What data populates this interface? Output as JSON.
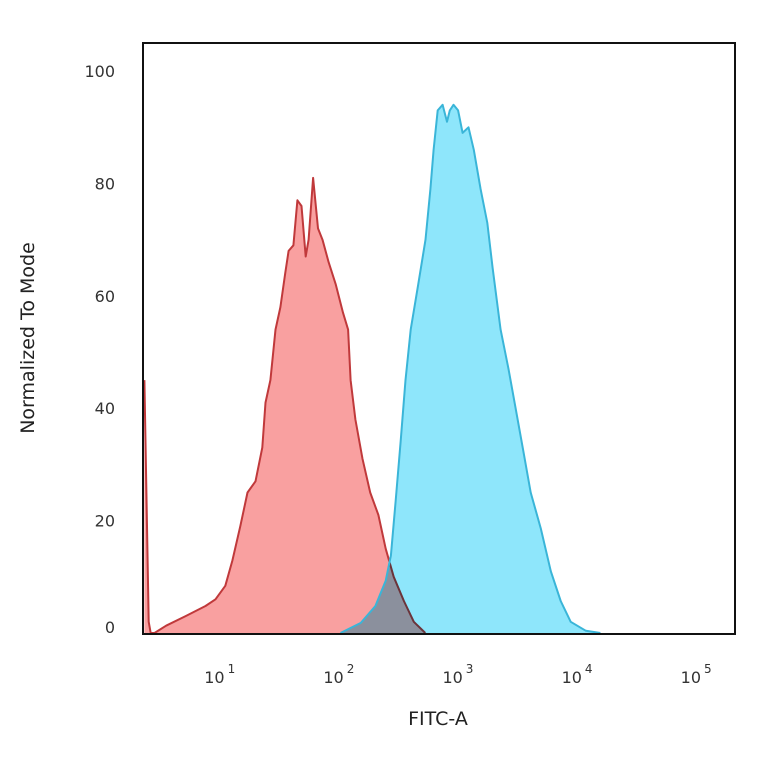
{
  "chart_data": {
    "type": "area",
    "title": "",
    "xlabel": "FITC-A",
    "ylabel": "Normalized To Mode",
    "x_scale": "log",
    "xlim": [
      2.24,
      209000
    ],
    "ylim": [
      0,
      105
    ],
    "grid": false,
    "legend": "none",
    "x_ticks": [
      {
        "base": "10",
        "exp": "1",
        "value": 10
      },
      {
        "base": "10",
        "exp": "2",
        "value": 100
      },
      {
        "base": "10",
        "exp": "3",
        "value": 1000
      },
      {
        "base": "10",
        "exp": "4",
        "value": 10000
      },
      {
        "base": "10",
        "exp": "5",
        "value": 100000
      }
    ],
    "y_ticks": [
      "0",
      "20",
      "40",
      "60",
      "80",
      "100"
    ],
    "y_tick_values": [
      0,
      20,
      40,
      60,
      80,
      100
    ],
    "series": [
      {
        "color": "#c0393b",
        "fill": "#f9a0a0",
        "x": [
          2.3,
          2.5,
          2.6,
          2.8,
          3.5,
          5.1,
          7.5,
          9.1,
          11,
          12.6,
          14.7,
          16.9,
          19.7,
          22.5,
          23.9,
          26.3,
          29,
          31.9,
          35,
          37.4,
          41,
          44.3,
          48,
          52,
          55,
          60,
          66,
          72,
          81,
          93,
          107,
          118,
          124,
          136,
          156,
          181,
          212,
          244,
          285,
          347,
          420,
          525
        ],
        "y": [
          45,
          2,
          0,
          0,
          1.3,
          3,
          4.8,
          6,
          8.4,
          12.9,
          19,
          25,
          27,
          33,
          41,
          45,
          54,
          58,
          64,
          68,
          69,
          77,
          76,
          67,
          70,
          81,
          72,
          70,
          66,
          62,
          57,
          54,
          45,
          38,
          31,
          25,
          21,
          15,
          10,
          5.7,
          2,
          0
        ]
      },
      {
        "color": "#3ab5d8",
        "fill": "#8ee6fb",
        "x": [
          102,
          151,
          200,
          244,
          270,
          296,
          326,
          358,
          396,
          458,
          527,
          579,
          616,
          667,
          733,
          799,
          843,
          906,
          990,
          1080,
          1210,
          1340,
          1530,
          1740,
          1930,
          2250,
          2620,
          3010,
          3450,
          4030,
          4900,
          5940,
          7190,
          8720,
          11700,
          15500
        ],
        "y": [
          0,
          1.8,
          4.8,
          9.3,
          13.8,
          23.6,
          34,
          45,
          54,
          62,
          70,
          79,
          86,
          93,
          94,
          91,
          93,
          94,
          93,
          89,
          90,
          86,
          79,
          73,
          65,
          54,
          47,
          40,
          33,
          25,
          18.6,
          11,
          5.7,
          2,
          0.4,
          0
        ]
      }
    ]
  }
}
